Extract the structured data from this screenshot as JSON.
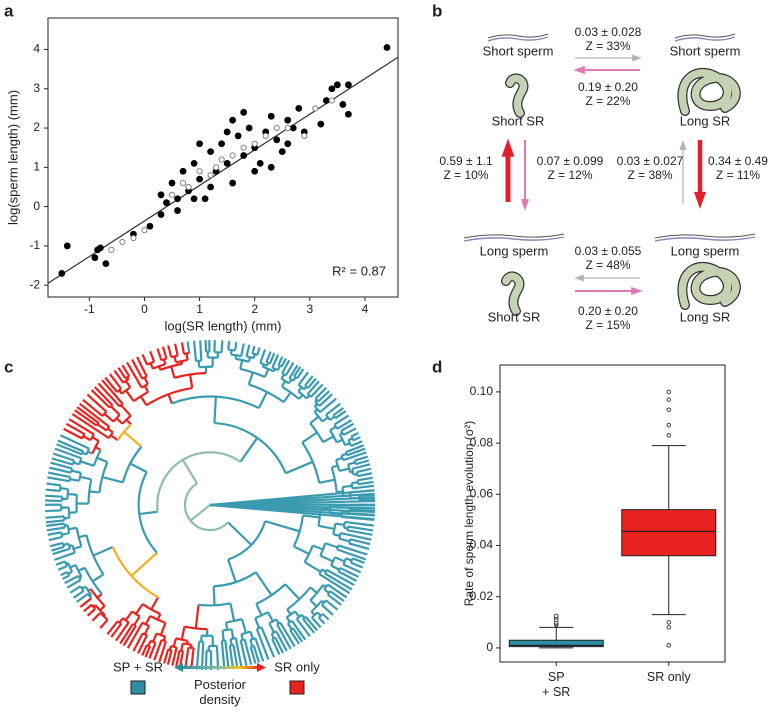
{
  "panel_labels": [
    "a",
    "b",
    "c",
    "d"
  ],
  "chart_data": [
    {
      "type": "scatter",
      "xlabel": "log(SR length) (mm)",
      "ylabel": "log(sperm length) (mm)",
      "annotation": "R² = 0.87",
      "xlim": [
        -1.75,
        4.6
      ],
      "ylim": [
        -2.3,
        4.8
      ],
      "xticks": [
        -1,
        0,
        1,
        2,
        3,
        4
      ],
      "yticks": [
        -2,
        -1,
        0,
        1,
        2,
        3,
        4
      ],
      "series": [
        {
          "color": "#000000",
          "marker": "filled",
          "x": [
            -1.5,
            -1.4,
            -0.9,
            -0.85,
            -0.8,
            -0.7,
            4.4,
            3.5,
            3.7,
            3.6,
            3.7,
            3.3,
            3.4,
            3.2,
            0.1,
            -0.2,
            0.3,
            0.4,
            0.5,
            0.6,
            0.7,
            0.8,
            0.9,
            1.0,
            1.1,
            1.2,
            1.3,
            1.4,
            1.5,
            1.6,
            1.7,
            1.8,
            1.9,
            2.0,
            2.1,
            2.2,
            2.3,
            2.4,
            2.5,
            2.6,
            2.7,
            2.8,
            2.9,
            1.0,
            1.2,
            0.6,
            1.6,
            2.0,
            0.3,
            2.3,
            1.5,
            0.9,
            2.6,
            1.8
          ],
          "values": [
            -1.7,
            -1.0,
            -1.3,
            -1.1,
            -1.05,
            -1.45,
            4.05,
            3.1,
            3.1,
            2.6,
            2.35,
            2.7,
            3.0,
            2.1,
            -0.5,
            -0.7,
            0.3,
            0.1,
            0.6,
            0.2,
            0.9,
            0.4,
            1.1,
            0.7,
            0.2,
            1.4,
            0.9,
            1.6,
            1.1,
            0.6,
            1.8,
            1.3,
            2.0,
            1.5,
            1.1,
            1.9,
            2.3,
            1.7,
            1.4,
            2.2,
            2.0,
            2.5,
            1.9,
            1.6,
            0.5,
            -0.1,
            2.2,
            0.9,
            -0.2,
            1.0,
            1.9,
            0.2,
            1.6,
            2.4
          ]
        },
        {
          "color": "#808080",
          "marker": "open",
          "x": [
            -0.6,
            -0.4,
            -0.2,
            0.0,
            0.5,
            0.8,
            1.0,
            1.2,
            1.4,
            1.6,
            1.8,
            2.0,
            2.2,
            2.4,
            2.6,
            2.9,
            3.1,
            3.4,
            1.3,
            0.7
          ],
          "values": [
            -1.1,
            -0.9,
            -0.8,
            -0.6,
            0.3,
            0.5,
            0.9,
            0.8,
            1.2,
            1.3,
            1.5,
            1.6,
            1.8,
            2.0,
            2.0,
            1.8,
            2.5,
            2.7,
            1.0,
            0.6
          ]
        }
      ],
      "fit_line": {
        "x": [
          -1.75,
          4.6
        ],
        "values": [
          -1.95,
          3.8
        ]
      }
    },
    {
      "type": "box",
      "ylabel": "Rate of sperm length evolution (σ²)",
      "categories": [
        "SP\n+ SR",
        "SR only"
      ],
      "ylim": [
        -0.0055,
        0.1105
      ],
      "yticks": [
        0,
        0.02,
        0.04,
        0.06,
        0.08,
        {
          "value": 0.1,
          "label": "0.10"
        }
      ],
      "boxes": [
        {
          "color": "#2e8fa3",
          "low": 0,
          "q1": 0.0005,
          "median": 0.001,
          "q3": 0.003,
          "high": 0.008,
          "outliers": [
            0.009,
            0.0095,
            0.01,
            0.011,
            0.012,
            0.0125
          ]
        },
        {
          "color": "#e8231f",
          "low": 0.013,
          "q1": 0.036,
          "median": 0.0455,
          "q3": 0.054,
          "high": 0.079,
          "outliers": [
            0.083,
            0.087,
            0.093,
            0.097,
            0.1,
            0.01,
            0.008,
            0.001
          ]
        }
      ]
    }
  ],
  "diagram": {
    "states": [
      {
        "sperm": "Short sperm",
        "sr": "Short SR"
      },
      {
        "sperm": "Short sperm",
        "sr": "Long SR"
      },
      {
        "sperm": "Long sperm",
        "sr": "Short SR"
      },
      {
        "sperm": "Long sperm",
        "sr": "Long SR"
      }
    ],
    "transitions": [
      {
        "rate": "0.03 ± 0.028",
        "z": "Z = 33%"
      },
      {
        "rate": "0.19 ± 0.20",
        "z": "Z = 22%"
      },
      {
        "rate": "0.59 ± 1.1",
        "z": "Z = 10%"
      },
      {
        "rate": "0.07 ± 0.099",
        "z": "Z = 12%"
      },
      {
        "rate": "0.03 ± 0.027",
        "z": "Z = 38%"
      },
      {
        "rate": "0.34 ± 0.49",
        "z": "Z = 11%"
      },
      {
        "rate": "0.03 ± 0.055",
        "z": "Z = 48%"
      },
      {
        "rate": "0.20 ± 0.20",
        "z": "Z = 15%"
      }
    ]
  },
  "tree": {
    "legend_low": "SP + SR",
    "legend_high": "SR only",
    "legend_title": "Posterior\ndensity"
  }
}
